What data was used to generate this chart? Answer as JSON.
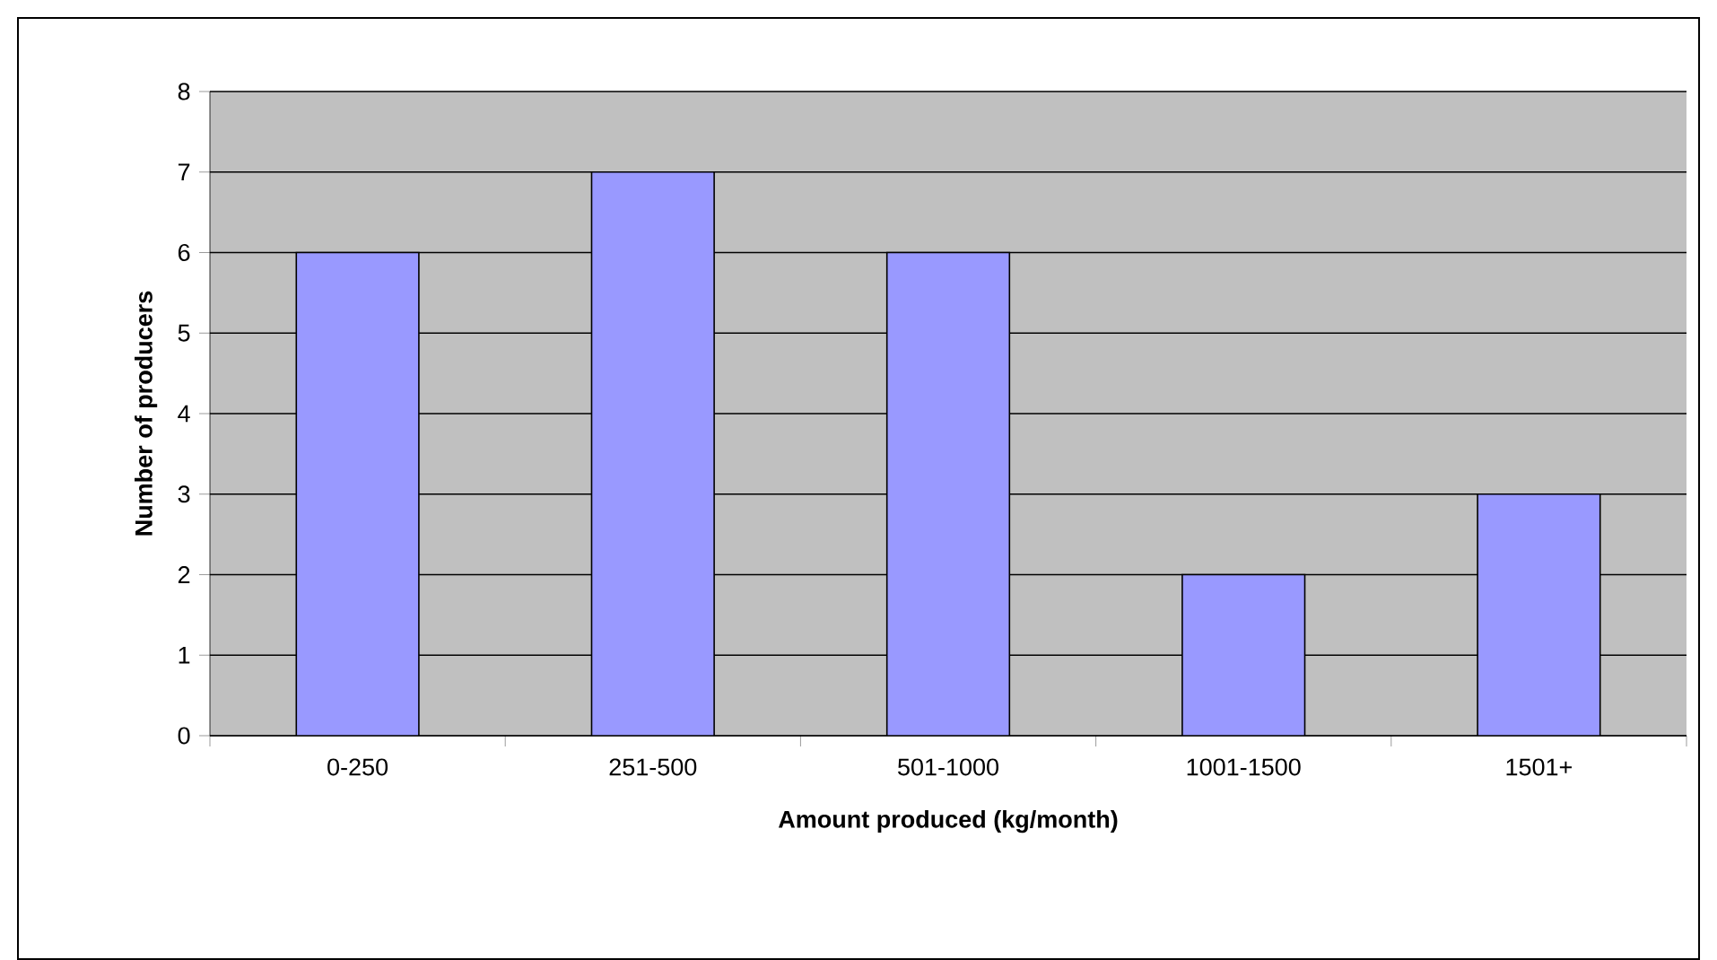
{
  "chart_data": {
    "type": "bar",
    "xlabel": "Amount produced (kg/month)",
    "ylabel": "Number of producers",
    "categories": [
      "0-250",
      "251-500",
      "501-1000",
      "1001-1500",
      "1501+"
    ],
    "values": [
      6,
      7,
      6,
      2,
      3
    ],
    "color": "#9999ff",
    "ylim": [
      0,
      8
    ],
    "yticks": [
      0,
      1,
      2,
      3,
      4,
      5,
      6,
      7,
      8
    ],
    "grid": "y"
  }
}
